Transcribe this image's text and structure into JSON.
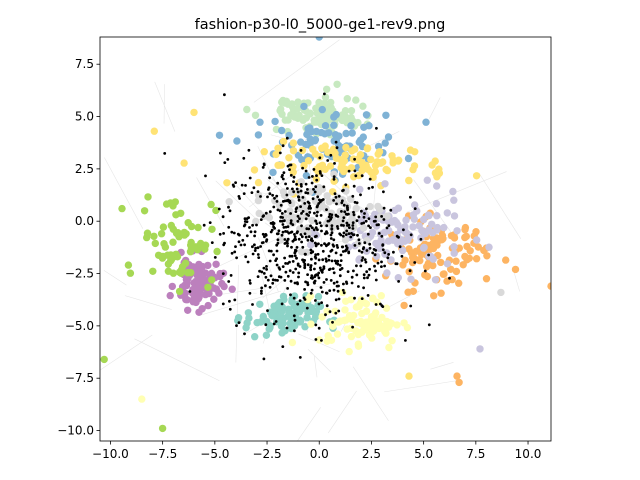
{
  "chart_data": {
    "type": "scatter",
    "title": "fashion-p30-l0_5000-ge1-rev9.png",
    "xlabel": "",
    "ylabel": "",
    "xlim": [
      -10.5,
      11.1
    ],
    "ylim": [
      -10.5,
      8.8
    ],
    "grid": false,
    "legend": "none",
    "x_ticks": [
      -10.0,
      -7.5,
      -5.0,
      -2.5,
      0.0,
      2.5,
      5.0,
      7.5,
      10.0
    ],
    "x_tick_labels": [
      "−10.0",
      "−7.5",
      "−5.0",
      "−2.5",
      "0.0",
      "2.5",
      "5.0",
      "7.5",
      "10.0"
    ],
    "y_ticks": [
      7.5,
      5.0,
      2.5,
      0.0,
      -2.5,
      -5.0,
      -7.5,
      -10.0
    ],
    "y_tick_labels": [
      "7.5",
      "5.0",
      "2.5",
      "0.0",
      "−2.5",
      "−5.0",
      "−7.5",
      "−10.0"
    ],
    "clusters": [
      {
        "color": "#c7e9c0",
        "cx": 0.0,
        "cy": 5.2,
        "sx": 1.9,
        "sy": 0.8,
        "n": 95
      },
      {
        "color": "#7fb2d5",
        "cx": 0.5,
        "cy": 3.8,
        "sx": 3.2,
        "sy": 1.4,
        "n": 85
      },
      {
        "color": "#ffe375",
        "cx": 1.8,
        "cy": 2.7,
        "sx": 4.0,
        "sy": 0.9,
        "n": 95
      },
      {
        "color": "#fdb462",
        "cx": 5.6,
        "cy": -1.6,
        "sx": 2.2,
        "sy": 1.5,
        "n": 100
      },
      {
        "color": "#c9c5de",
        "cx": 3.8,
        "cy": -0.6,
        "sx": 2.9,
        "sy": 1.6,
        "n": 120
      },
      {
        "color": "#bc80bd",
        "cx": -5.8,
        "cy": -3.0,
        "sx": 1.0,
        "sy": 1.1,
        "n": 95
      },
      {
        "color": "#a6d854",
        "cx": -6.8,
        "cy": -0.8,
        "sx": 1.6,
        "sy": 2.0,
        "n": 70
      },
      {
        "color": "#8dd3c7",
        "cx": -1.8,
        "cy": -4.6,
        "sx": 1.6,
        "sy": 0.9,
        "n": 85
      },
      {
        "color": "#ffffb3",
        "cx": 2.0,
        "cy": -4.8,
        "sx": 1.8,
        "sy": 1.2,
        "n": 85
      },
      {
        "color": "#d9d9d9",
        "cx": 0.0,
        "cy": 0.5,
        "sx": 3.0,
        "sy": 1.5,
        "n": 90
      }
    ],
    "black_points": {
      "color": "#000000",
      "cx": -0.5,
      "cy": -0.8,
      "sx": 3.4,
      "sy": 3.2,
      "n": 700
    },
    "outliers": [
      {
        "x": 0.0,
        "y": 8.8,
        "color": "#7fb2d5"
      },
      {
        "x": -10.3,
        "y": -6.6,
        "color": "#a6d854"
      },
      {
        "x": -7.5,
        "y": -9.9,
        "color": "#a6d854"
      },
      {
        "x": -8.5,
        "y": -8.5,
        "color": "#ffffb3"
      },
      {
        "x": 11.1,
        "y": -3.1,
        "color": "#fdb462"
      },
      {
        "x": 6.7,
        "y": -7.7,
        "color": "#fdb462"
      },
      {
        "x": 6.6,
        "y": -7.4,
        "color": "#fdb462"
      },
      {
        "x": 4.3,
        "y": -7.4,
        "color": "#ffe375"
      },
      {
        "x": 9.4,
        "y": -2.3,
        "color": "#fdb462"
      },
      {
        "x": 8.7,
        "y": -3.4,
        "color": "#d9d9d9"
      },
      {
        "x": 7.7,
        "y": -6.1,
        "color": "#c9c5de"
      },
      {
        "x": -7.9,
        "y": 4.3,
        "color": "#ffe375"
      },
      {
        "x": -6.0,
        "y": 5.2,
        "color": "#ffe375"
      }
    ]
  }
}
